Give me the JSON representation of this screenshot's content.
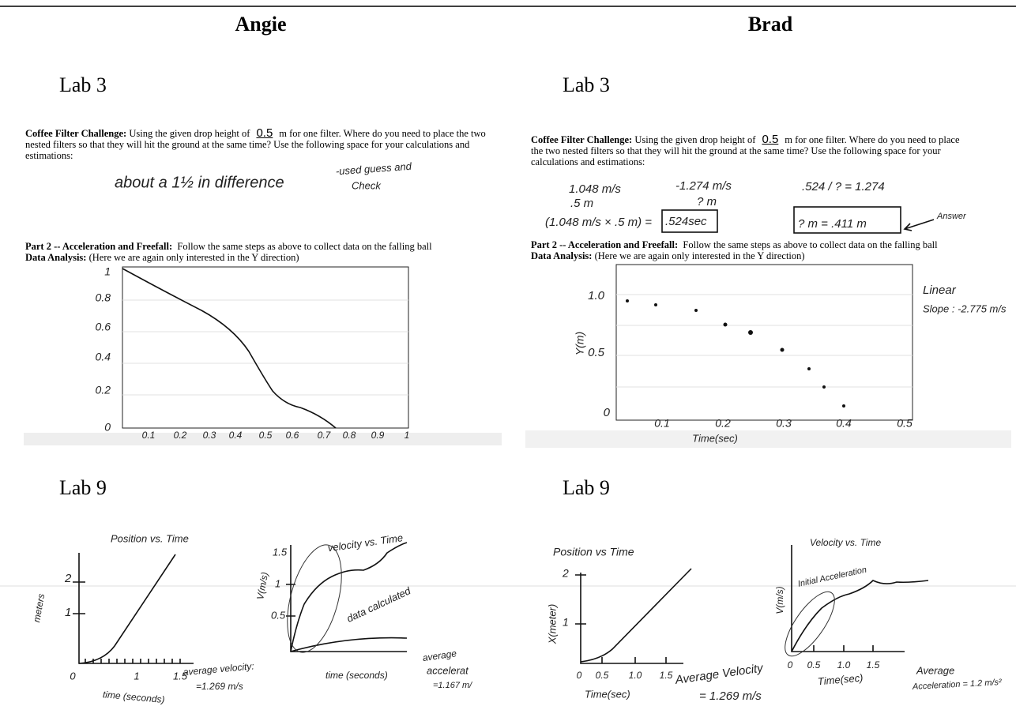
{
  "header": {
    "left": "Angie",
    "right": "Brad"
  },
  "angie": {
    "lab3": {
      "heading": "Lab 3",
      "challenge": {
        "label": "Coffee Filter Challenge:",
        "before": "Using the given drop height of",
        "height": "0.5",
        "after": "m for one filter. Where do you need to place the two nested filters so that they will hit the ground at the same time? Use the following space for your calculations and estimations:"
      },
      "notes": [
        "about a 1½ in difference",
        "-used guess and",
        "Check"
      ],
      "part2": {
        "label": "Part 2 -- Acceleration and Freefall:",
        "text": "Follow the same steps as above to collect data on the falling ball"
      },
      "analysis": {
        "label": "Data Analysis:",
        "text": "(Here we are again only interested in the Y direction)"
      },
      "graph": {
        "yticks": [
          "1",
          "0.8",
          "0.6",
          "0.4",
          "0.2",
          "0"
        ],
        "xticks": [
          "0.1",
          "0.2",
          "0.3",
          "0.4",
          "0.5",
          "0.6",
          "0.7",
          "0.8",
          "0.9",
          "1"
        ]
      }
    },
    "lab9": {
      "heading": "Lab 9",
      "position_graph": {
        "title": "Position vs. Time",
        "ylabel": "meters",
        "yticks": [
          "2",
          "1"
        ],
        "xticks": [
          "0",
          "1",
          "1.5"
        ],
        "xlabel": "time (seconds)",
        "notes": [
          "average velocity:",
          "=1.269 m/s"
        ]
      },
      "velocity_graph": {
        "title": "velocity vs. Time",
        "ylabel": "V(m/s)",
        "yticks": [
          "1.5",
          "1",
          "0.5"
        ],
        "xlabel": "time (seconds)",
        "annotation": "data calculated",
        "notes": [
          "average",
          "accelerat",
          "=1.167 m/"
        ]
      }
    }
  },
  "brad": {
    "lab3": {
      "heading": "Lab 3",
      "challenge": {
        "label": "Coffee Filter Challenge:",
        "before": "Using the given drop height of",
        "height": "0.5",
        "after": "m for one filter. Where do you need to place the two nested filters so that they will hit the ground at the same time? Use the following space for your calculations and estimations:"
      },
      "notes": [
        "1.048 m/s",
        ".5 m",
        "-1.274 m/s",
        "? m",
        "(1.048 m/s × .5 m) =",
        ".524sec",
        ".524 / ? = 1.274",
        "? m = .411 m",
        "Answer"
      ],
      "part2": {
        "label": "Part 2 -- Acceleration and Freefall:",
        "text": "Follow the same steps as above to collect data on the falling ball"
      },
      "analysis": {
        "label": "Data Analysis:",
        "text": "(Here we are again only interested in the Y direction)"
      },
      "graph": {
        "ylabel": "Y(m)",
        "yticks": [
          "1.0",
          "0.5",
          "0"
        ],
        "xticks": [
          "0.1",
          "0.2",
          "0.3",
          "0.4",
          "0.5"
        ],
        "xlabel": "Time(sec)",
        "notes": [
          "Linear",
          "Slope : -2.775 m/s"
        ]
      }
    },
    "lab9": {
      "heading": "Lab 9",
      "position_graph": {
        "title": "Position vs Time",
        "ylabel": "X(meter)",
        "yticks": [
          "2",
          "1"
        ],
        "xticks": [
          "0",
          "0.5",
          "1.0",
          "1.5"
        ],
        "xlabel": "Time(sec)",
        "notes": [
          "Average Velocity",
          "= 1.269 m/s"
        ]
      },
      "velocity_graph": {
        "title": "Velocity vs. Time",
        "ylabel": "V(m/s)",
        "annotation": "Initial Acceleration",
        "xticks": [
          "0",
          "0.5",
          "1.0",
          "1.5"
        ],
        "xlabel": "Time(sec)",
        "notes": [
          "Average",
          "Acceleration = 1.2 m/s²"
        ]
      }
    }
  }
}
